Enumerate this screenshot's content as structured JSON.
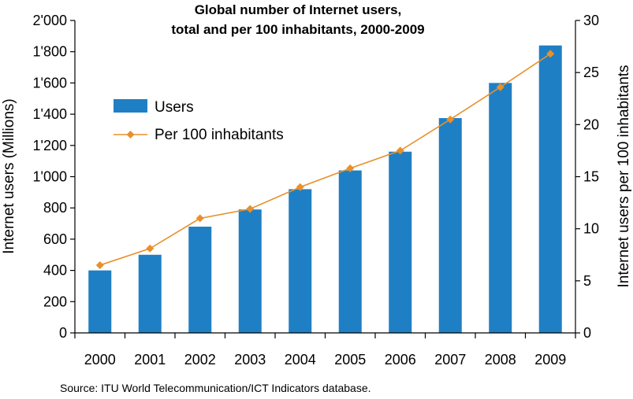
{
  "chart_data": {
    "type": "bar",
    "title_lines": [
      "Global number of Internet users,",
      "total and per 100 inhabitants, 2000-2009"
    ],
    "categories": [
      "2000",
      "2001",
      "2002",
      "2003",
      "2004",
      "2005",
      "2006",
      "2007",
      "2008",
      "2009"
    ],
    "y_left": {
      "label": "Internet users (Millions)",
      "range": [
        0,
        2000
      ],
      "ticks": [
        0,
        200,
        400,
        600,
        800,
        1000,
        1200,
        1400,
        1600,
        1800,
        2000
      ],
      "tick_labels": [
        "0",
        "200",
        "400",
        "600",
        "800",
        "1'000",
        "1'200",
        "1'400",
        "1'600",
        "1'800",
        "2'000"
      ]
    },
    "y_right": {
      "label": "Internet users per 100 inhabitants",
      "range": [
        0,
        30
      ],
      "ticks": [
        0,
        5,
        10,
        15,
        20,
        25,
        30
      ],
      "tick_labels": [
        "0",
        "5",
        "10",
        "15",
        "20",
        "25",
        "30"
      ]
    },
    "series": [
      {
        "name": "Users",
        "kind": "bar",
        "axis": "left",
        "color": "#1f7fc4",
        "values": [
          400,
          500,
          680,
          790,
          920,
          1040,
          1160,
          1375,
          1600,
          1840
        ]
      },
      {
        "name": "Per 100 inhabitants",
        "kind": "line",
        "axis": "right",
        "color": "#e8902a",
        "values": [
          6.5,
          8.1,
          11.0,
          11.9,
          14.0,
          15.8,
          17.5,
          20.5,
          23.6,
          26.8
        ]
      }
    ],
    "legend_position": "top-left",
    "grid": false
  },
  "source_text": "Source: ITU World Telecommunication/ICT Indicators database."
}
